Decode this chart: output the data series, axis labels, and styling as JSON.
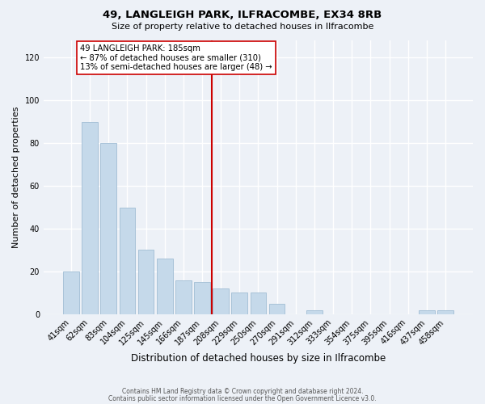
{
  "title": "49, LANGLEIGH PARK, ILFRACOMBE, EX34 8RB",
  "subtitle": "Size of property relative to detached houses in Ilfracombe",
  "xlabel": "Distribution of detached houses by size in Ilfracombe",
  "ylabel": "Number of detached properties",
  "bar_labels": [
    "41sqm",
    "62sqm",
    "83sqm",
    "104sqm",
    "125sqm",
    "145sqm",
    "166sqm",
    "187sqm",
    "208sqm",
    "229sqm",
    "250sqm",
    "270sqm",
    "291sqm",
    "312sqm",
    "333sqm",
    "354sqm",
    "375sqm",
    "395sqm",
    "416sqm",
    "437sqm",
    "458sqm"
  ],
  "bar_values": [
    20,
    90,
    80,
    50,
    30,
    26,
    16,
    15,
    12,
    10,
    10,
    5,
    0,
    2,
    0,
    0,
    0,
    0,
    0,
    2,
    2
  ],
  "bar_color": "#c5d9ea",
  "bar_edge_color": "#a0bdd4",
  "vline_color": "#cc0000",
  "annotation_title": "49 LANGLEIGH PARK: 185sqm",
  "annotation_line1": "← 87% of detached houses are smaller (310)",
  "annotation_line2": "13% of semi-detached houses are larger (48) →",
  "annotation_box_color": "#ffffff",
  "annotation_box_edge": "#cc0000",
  "yticks": [
    0,
    20,
    40,
    60,
    80,
    100,
    120
  ],
  "ylim": [
    0,
    128
  ],
  "footer1": "Contains HM Land Registry data © Crown copyright and database right 2024.",
  "footer2": "Contains public sector information licensed under the Open Government Licence v3.0.",
  "background_color": "#edf1f7"
}
